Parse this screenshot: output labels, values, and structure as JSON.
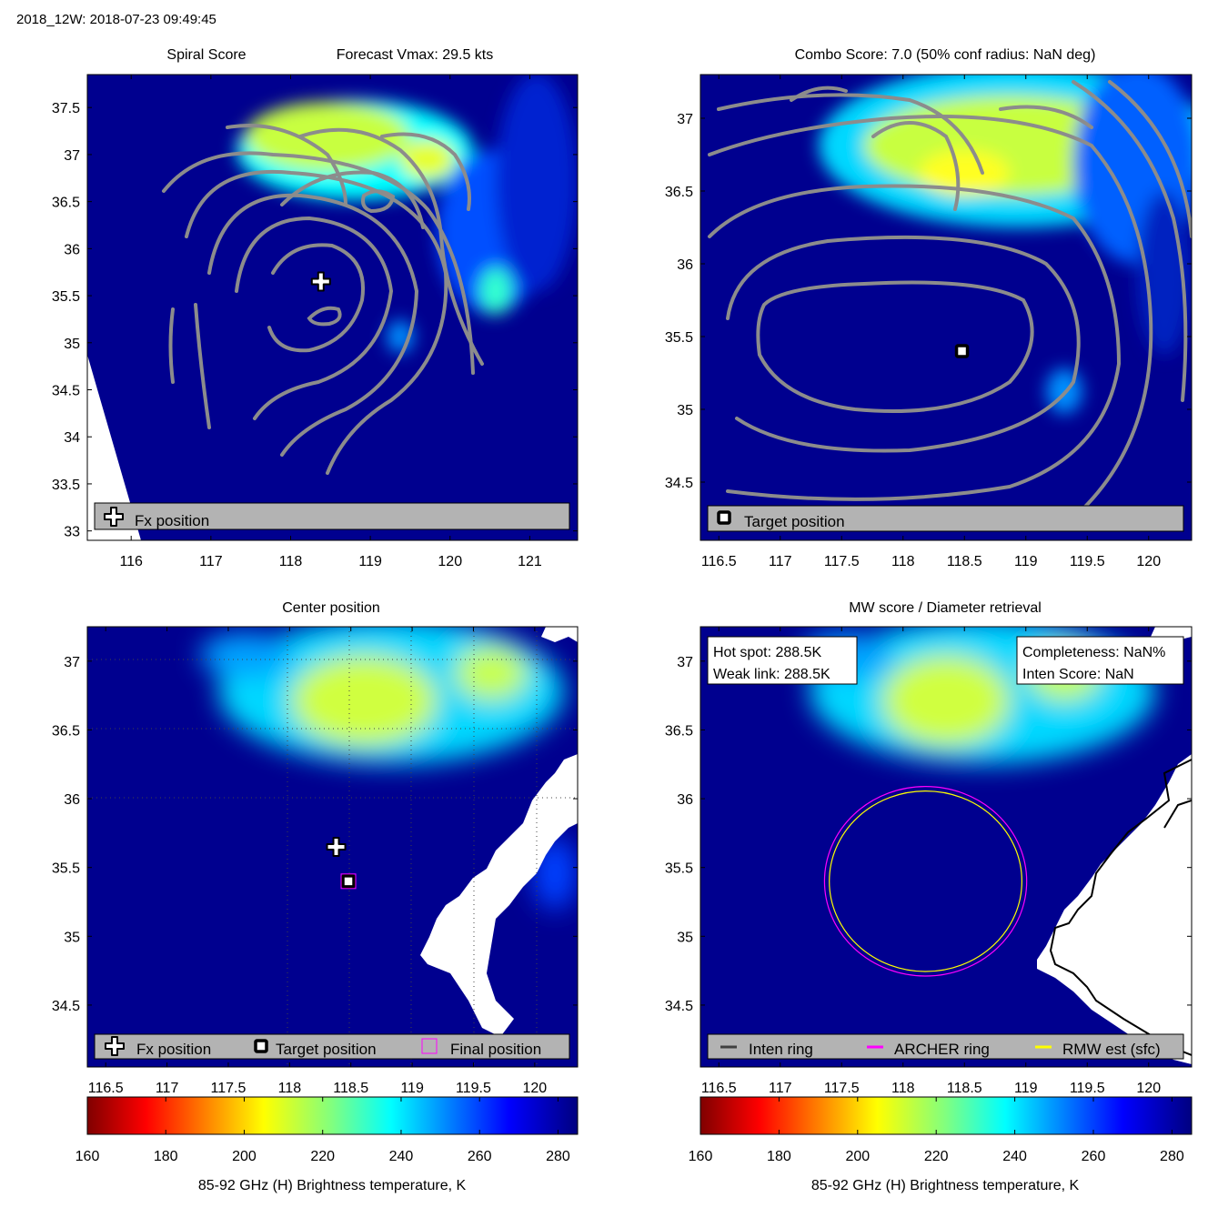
{
  "header": "2018_12W: 2018-07-23 09:49:45",
  "colors": {
    "ring_gray": "#8c8c8c",
    "archer_ring": "#ff00ff",
    "rmw_ring": "#ffff00",
    "inten_ring": "#404040",
    "legend_bg": "#b3b3b3",
    "land": "#ffffff",
    "ocean_base": "#00008f"
  },
  "chart_data": [
    {
      "id": "spiral",
      "type": "heatmap",
      "title_left": "Spiral Score",
      "title_right": "Forecast Vmax: 29.5 kts",
      "xlim": [
        115.45,
        121.6
      ],
      "ylim": [
        32.9,
        37.85
      ],
      "xticks": [
        "116",
        "117",
        "118",
        "119",
        "120",
        "121"
      ],
      "yticks": [
        "33",
        "33.5",
        "34",
        "34.5",
        "35",
        "35.5",
        "36",
        "36.5",
        "37",
        "37.5"
      ],
      "markers": [
        {
          "kind": "plus",
          "lon": 118.38,
          "lat": 35.65
        }
      ],
      "legend": [
        {
          "symbol": "plus",
          "label": "Fx position"
        }
      ]
    },
    {
      "id": "combo",
      "type": "heatmap",
      "title": "Combo Score: 7.0  (50% conf radius: NaN deg)",
      "xlim": [
        116.35,
        120.35
      ],
      "ylim": [
        34.1,
        37.3
      ],
      "xticks": [
        "116.5",
        "117",
        "117.5",
        "118",
        "118.5",
        "119",
        "119.5",
        "120"
      ],
      "yticks": [
        "34.5",
        "35",
        "35.5",
        "36",
        "36.5",
        "37"
      ],
      "markers": [
        {
          "kind": "square",
          "lon": 118.48,
          "lat": 35.4
        }
      ],
      "legend": [
        {
          "symbol": "square",
          "label": "Target position"
        }
      ]
    },
    {
      "id": "center",
      "type": "heatmap",
      "title": "Center position",
      "xlim": [
        116.35,
        120.35
      ],
      "ylim": [
        34.05,
        37.25
      ],
      "xticks": [
        "116.5",
        "117",
        "117.5",
        "118",
        "118.5",
        "119",
        "119.5",
        "120"
      ],
      "yticks": [
        "34.5",
        "35",
        "35.5",
        "36",
        "36.5",
        "37"
      ],
      "markers": [
        {
          "kind": "plus",
          "lon": 118.38,
          "lat": 35.65
        },
        {
          "kind": "square",
          "lon": 118.48,
          "lat": 35.4
        },
        {
          "kind": "magenta-square",
          "lon": 118.48,
          "lat": 35.4
        }
      ],
      "legend": [
        {
          "symbol": "plus",
          "label": "Fx position"
        },
        {
          "symbol": "square",
          "label": "Target position"
        },
        {
          "symbol": "magenta-square",
          "label": "Final position"
        }
      ],
      "colorbar": {
        "ticks": [
          "160",
          "180",
          "200",
          "220",
          "240",
          "260",
          "280"
        ],
        "range": [
          160,
          285
        ],
        "label": "85-92 GHz (H) Brightness temperature, K"
      }
    },
    {
      "id": "mw",
      "type": "heatmap",
      "title": "MW score / Diameter retrieval",
      "xlim": [
        116.35,
        120.35
      ],
      "ylim": [
        34.05,
        37.25
      ],
      "xticks": [
        "116.5",
        "117",
        "117.5",
        "118",
        "118.5",
        "119",
        "119.5",
        "120"
      ],
      "yticks": [
        "34.5",
        "35",
        "35.5",
        "36",
        "36.5",
        "37"
      ],
      "info_left": [
        "Hot spot: 288.5K",
        "Weak link: 288.5K"
      ],
      "info_right": [
        "Completeness: NaN%",
        "Inten Score: NaN"
      ],
      "rings": [
        {
          "name": "ARCHER ring",
          "lon": 118.48,
          "lat": 35.4,
          "radius_deg": 0.84
        },
        {
          "name": "RMW est (sfc)",
          "lon": 118.48,
          "lat": 35.4,
          "radius_deg": 0.8
        }
      ],
      "legend": [
        {
          "symbol": "line-dark",
          "label": "Inten ring"
        },
        {
          "symbol": "line-magenta",
          "label": "ARCHER ring"
        },
        {
          "symbol": "line-yellow",
          "label": "RMW est (sfc)"
        }
      ],
      "colorbar": {
        "ticks": [
          "160",
          "180",
          "200",
          "220",
          "240",
          "260",
          "280"
        ],
        "range": [
          160,
          285
        ],
        "label": "85-92 GHz (H) Brightness temperature, K"
      }
    }
  ]
}
